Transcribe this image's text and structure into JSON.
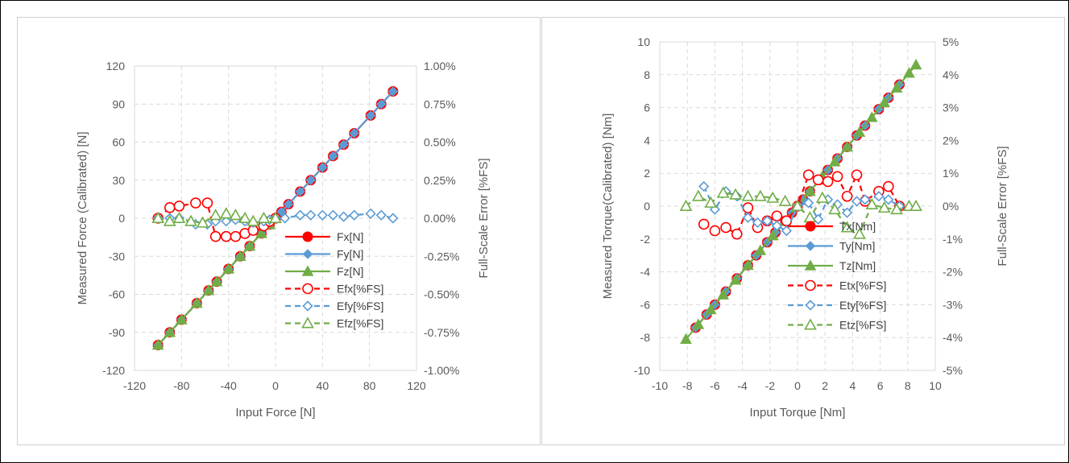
{
  "chart_data": [
    {
      "type": "line",
      "xlabel": "Input Force [N]",
      "ylabel": "Measured Force (Calibrated) [N]",
      "y2label": "Full-Scale Error [%FS]",
      "xlim": [
        -120,
        120
      ],
      "ylim": [
        -120,
        120
      ],
      "y2lim": [
        -1.0,
        1.0
      ],
      "xticks": [
        "-120",
        "-80",
        "-40",
        "0",
        "40",
        "80",
        "120"
      ],
      "yticks": [
        "120",
        "90",
        "60",
        "30",
        "0",
        "-30",
        "-60",
        "-90",
        "-120"
      ],
      "y2ticks": [
        "1.00%",
        "0.75%",
        "0.50%",
        "0.25%",
        "0.00%",
        "-0.25%",
        "-0.50%",
        "-0.75%",
        "-1.00%"
      ],
      "grid": true,
      "legend_position": "bottom-right",
      "series": [
        {
          "name": "Fx[N]",
          "axis": "left",
          "style": "solid",
          "marker": "circle-filled",
          "color": "#ff0000",
          "x": [
            -100,
            -90,
            -80,
            -67,
            -57,
            -50,
            -40,
            -30,
            -22,
            -12,
            -5,
            0,
            5,
            11,
            21,
            30,
            40,
            49,
            58,
            67,
            81,
            90,
            100
          ],
          "y": [
            -100,
            -90,
            -80,
            -67,
            -57,
            -50,
            -40,
            -30,
            -22,
            -12,
            -5,
            0,
            5,
            11,
            21,
            30,
            40,
            49,
            58,
            67,
            81,
            90,
            100
          ]
        },
        {
          "name": "Fy[N]",
          "axis": "left",
          "style": "solid",
          "marker": "diamond-filled",
          "color": "#5b9bd5",
          "x": [
            -100,
            -90,
            -80,
            -67,
            -57,
            -50,
            -40,
            -30,
            -22,
            -12,
            -5,
            0,
            5,
            11,
            21,
            30,
            40,
            49,
            58,
            67,
            81,
            90,
            100
          ],
          "y": [
            -100,
            -90,
            -80,
            -67,
            -57,
            -50,
            -40,
            -30,
            -22,
            -12,
            -5,
            0,
            5,
            11,
            21,
            30,
            40,
            49,
            58,
            67,
            81,
            90,
            100
          ]
        },
        {
          "name": "Fz[N]",
          "axis": "left",
          "style": "solid",
          "marker": "triangle-filled",
          "color": "#70ad47",
          "x": [
            -100,
            -90,
            -80,
            -67,
            -57,
            -50,
            -40,
            -30,
            -22,
            -12,
            -5,
            0
          ],
          "y": [
            -100,
            -90,
            -80,
            -67,
            -57,
            -50,
            -40,
            -30,
            -22,
            -12,
            -5,
            0
          ]
        },
        {
          "name": "Efx[%FS]",
          "axis": "right",
          "style": "dashed",
          "marker": "circle-open",
          "color": "#ff0000",
          "x": [
            -100,
            -90,
            -82,
            -68,
            -58,
            -51,
            -42,
            -34,
            -26,
            -19,
            -10,
            -5,
            0
          ],
          "y": [
            0.0,
            0.07,
            0.08,
            0.1,
            0.1,
            -0.12,
            -0.12,
            -0.12,
            -0.1,
            -0.08,
            -0.05,
            -0.02,
            0.0
          ]
        },
        {
          "name": "Efy[%FS]",
          "axis": "right",
          "style": "dashed",
          "marker": "diamond-open",
          "color": "#5b9bd5",
          "x": [
            -100,
            -90,
            -82,
            -68,
            -58,
            -51,
            -42,
            -34,
            -26,
            -19,
            -10,
            -5,
            0,
            8,
            21,
            30,
            40,
            49,
            58,
            67,
            81,
            90,
            100
          ],
          "y": [
            0.0,
            0.0,
            0.0,
            -0.04,
            -0.04,
            -0.02,
            -0.02,
            -0.01,
            -0.02,
            -0.03,
            -0.02,
            -0.01,
            0.0,
            0.0,
            0.02,
            0.02,
            0.02,
            0.02,
            0.01,
            0.02,
            0.03,
            0.02,
            0.0
          ]
        },
        {
          "name": "Efz[%FS]",
          "axis": "right",
          "style": "dashed",
          "marker": "triangle-open",
          "color": "#70ad47",
          "x": [
            -100,
            -90,
            -82,
            -72,
            -62,
            -51,
            -42,
            -34,
            -26,
            -19,
            -10,
            0
          ],
          "y": [
            0.0,
            -0.02,
            0.0,
            -0.02,
            -0.03,
            0.02,
            0.03,
            0.02,
            0.0,
            -0.02,
            0.0,
            0.0
          ]
        }
      ]
    },
    {
      "type": "line",
      "xlabel": "Input Torque [Nm]",
      "ylabel": "Measured Torque(Calibrated) [Nm]",
      "y2label": "Full-Scale Error [%FS]",
      "xlim": [
        -10,
        10
      ],
      "ylim": [
        -10,
        10
      ],
      "y2lim": [
        -5,
        5
      ],
      "xticks": [
        "-10",
        "-8",
        "-6",
        "-4",
        "-2",
        "0",
        "2",
        "4",
        "6",
        "8",
        "10"
      ],
      "yticks": [
        "10",
        "8",
        "6",
        "4",
        "2",
        "0",
        "-2",
        "-4",
        "-6",
        "-8",
        "-10"
      ],
      "y2ticks": [
        "5%",
        "4%",
        "3%",
        "2%",
        "1%",
        "0%",
        "-1%",
        "-2%",
        "-3%",
        "-4%",
        "-5%"
      ],
      "grid": true,
      "legend_position": "bottom-right",
      "series": [
        {
          "name": "Tx[Nm]",
          "axis": "left",
          "style": "solid",
          "marker": "circle-filled",
          "color": "#ff0000",
          "x": [
            -7.4,
            -6.6,
            -6.0,
            -5.2,
            -4.4,
            -3.6,
            -3.0,
            -2.2,
            -1.6,
            -0.9,
            -0.4,
            0,
            0.4,
            0.9,
            1.6,
            2.2,
            2.9,
            3.6,
            4.3,
            4.9,
            5.9,
            6.6,
            7.4
          ],
          "y": [
            -7.4,
            -6.6,
            -6.0,
            -5.2,
            -4.4,
            -3.6,
            -3.0,
            -2.2,
            -1.6,
            -0.9,
            -0.4,
            0,
            0.4,
            0.9,
            1.6,
            2.2,
            2.9,
            3.6,
            4.3,
            4.9,
            5.9,
            6.6,
            7.4
          ]
        },
        {
          "name": "Ty[Nm]",
          "axis": "left",
          "style": "solid",
          "marker": "diamond-filled",
          "color": "#5b9bd5",
          "x": [
            -7.4,
            -6.6,
            -6.0,
            -5.2,
            -4.4,
            -3.6,
            -3.0,
            -2.2,
            -1.6,
            -0.9,
            -0.4,
            0,
            0.4,
            0.9,
            1.6,
            2.2,
            2.9,
            3.6,
            4.3,
            4.9,
            5.9,
            6.6,
            7.4
          ],
          "y": [
            -7.4,
            -6.6,
            -6.0,
            -5.2,
            -4.4,
            -3.6,
            -3.0,
            -2.2,
            -1.6,
            -0.9,
            -0.4,
            0,
            0.4,
            0.9,
            1.6,
            2.2,
            2.9,
            3.6,
            4.3,
            4.9,
            5.9,
            6.6,
            7.4
          ]
        },
        {
          "name": "Tz[Nm]",
          "axis": "left",
          "style": "solid",
          "marker": "triangle-filled",
          "color": "#70ad47",
          "x": [
            -8.1,
            -7.2,
            -6.3,
            -5.4,
            -4.5,
            -3.6,
            -2.7,
            -1.8,
            -0.9,
            0,
            0.9,
            1.8,
            2.7,
            3.6,
            4.5,
            5.4,
            6.3,
            7.2,
            8.1,
            8.6
          ],
          "y": [
            -8.1,
            -7.2,
            -6.3,
            -5.4,
            -4.5,
            -3.6,
            -2.7,
            -1.8,
            -0.9,
            0,
            0.9,
            1.8,
            2.7,
            3.6,
            4.5,
            5.4,
            6.3,
            7.2,
            8.1,
            8.6
          ]
        },
        {
          "name": "Etx[%FS]",
          "axis": "right",
          "style": "dashed",
          "marker": "circle-open",
          "color": "#ff0000",
          "x": [
            -6.8,
            -6.0,
            -5.2,
            -4.4,
            -3.6,
            -2.9,
            -2.2,
            -1.5,
            -0.8,
            0,
            0.8,
            1.5,
            2.2,
            2.9,
            3.6,
            4.3,
            4.9,
            5.9,
            6.6,
            7.4
          ],
          "y": [
            -0.55,
            -0.75,
            -0.65,
            -0.85,
            -0.05,
            -0.65,
            -0.45,
            -0.3,
            -0.45,
            0,
            0.95,
            0.8,
            0.75,
            0.9,
            0.3,
            0.95,
            0.15,
            0.45,
            0.6,
            0.0
          ]
        },
        {
          "name": "Ety[%FS]",
          "axis": "right",
          "style": "dashed",
          "marker": "diamond-open",
          "color": "#5b9bd5",
          "x": [
            -6.8,
            -6.0,
            -5.2,
            -4.4,
            -3.6,
            -2.9,
            -2.2,
            -1.5,
            -0.8,
            0,
            0.8,
            1.5,
            2.2,
            2.9,
            3.6,
            4.3,
            4.9,
            5.9,
            6.6,
            7.4
          ],
          "y": [
            0.6,
            -0.1,
            0.45,
            0.3,
            -0.35,
            -0.5,
            -0.45,
            -0.6,
            -0.75,
            0,
            0.1,
            -0.4,
            0.2,
            0.05,
            -0.2,
            0.15,
            0.2,
            0.3,
            0.2,
            0.0
          ]
        },
        {
          "name": "Etz[%FS]",
          "axis": "right",
          "style": "dashed",
          "marker": "triangle-open",
          "color": "#70ad47",
          "x": [
            -8.1,
            -7.2,
            -6.3,
            -5.4,
            -4.5,
            -3.6,
            -2.7,
            -1.8,
            -0.9,
            0,
            0.9,
            1.8,
            2.7,
            3.6,
            4.5,
            5.4,
            6.3,
            7.2,
            8.1,
            8.6
          ],
          "y": [
            0.0,
            0.3,
            0.1,
            0.4,
            0.35,
            0.3,
            0.3,
            0.25,
            0.15,
            0.0,
            -0.35,
            0.25,
            -0.1,
            -0.65,
            -0.85,
            0.05,
            -0.05,
            -0.1,
            0.0,
            0.0
          ]
        }
      ]
    }
  ]
}
